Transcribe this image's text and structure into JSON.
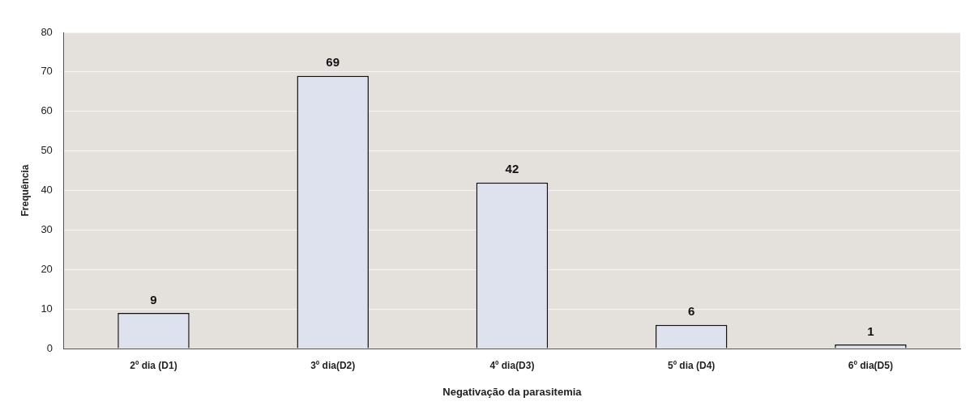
{
  "chart_data": {
    "type": "bar",
    "xlabel": "Negativação da parasitemia",
    "ylabel": "Frequência",
    "categories": [
      "2º dia (D1)",
      "3º dia(D2)",
      "4º dia(D3)",
      "5º dia (D4)",
      "6º dia(D5)"
    ],
    "values": [
      9,
      69,
      42,
      6,
      1
    ],
    "color": "#dde2ee",
    "ylim": [
      0,
      80
    ],
    "yticks": [
      0,
      10,
      20,
      30,
      40,
      50,
      60,
      70,
      80
    ],
    "grid": "y",
    "data_labels": true
  }
}
